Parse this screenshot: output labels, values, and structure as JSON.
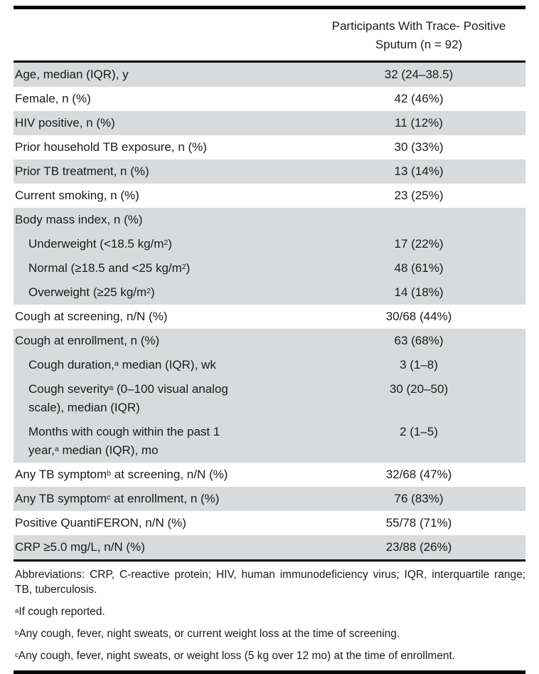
{
  "colors": {
    "row_shade": "#d8dadb",
    "rule": "#050505",
    "text": "#1b1b1b",
    "background": "#ffffff"
  },
  "table": {
    "header": {
      "title_line1": "Participants With Trace- Positive",
      "title_line2": "Sputum (n = 92)"
    },
    "rows": [
      {
        "label": [
          "Age, median (IQR), y"
        ],
        "value": "32 (24–38.5)",
        "shade": "gray",
        "indent": false
      },
      {
        "label": [
          "Female, n (%)"
        ],
        "value": "42 (46%)",
        "shade": "white",
        "indent": false
      },
      {
        "label": [
          "HIV positive, n (%)"
        ],
        "value": "11 (12%)",
        "shade": "gray",
        "indent": false
      },
      {
        "label": [
          "Prior household TB exposure, n (%)"
        ],
        "value": "30 (33%)",
        "shade": "white",
        "indent": false
      },
      {
        "label": [
          "Prior TB treatment, n (%)"
        ],
        "value": "13 (14%)",
        "shade": "gray",
        "indent": false
      },
      {
        "label": [
          "Current smoking, n (%)"
        ],
        "value": "23 (25%)",
        "shade": "white",
        "indent": false
      },
      {
        "label": [
          "Body mass index, n (%)"
        ],
        "value": "",
        "shade": "gray",
        "indent": false
      },
      {
        "label": [
          "Underweight (<18.5 kg/m",
          {
            "sup": "2"
          },
          ")"
        ],
        "value": "17 (22%)",
        "shade": "gray",
        "indent": true
      },
      {
        "label": [
          "Normal (≥18.5 and <25 kg/m",
          {
            "sup": "2"
          },
          ")"
        ],
        "value": "48 (61%)",
        "shade": "gray",
        "indent": true
      },
      {
        "label": [
          "Overweight (≥25 kg/m",
          {
            "sup": "2"
          },
          ")"
        ],
        "value": "14 (18%)",
        "shade": "gray",
        "indent": true
      },
      {
        "label": [
          "Cough at screening, n/N (%)"
        ],
        "value": "30/68 (44%)",
        "shade": "white",
        "indent": false
      },
      {
        "label": [
          "Cough at enrollment, n (%)"
        ],
        "value": "63 (68%)",
        "shade": "gray",
        "indent": false
      },
      {
        "label": [
          "Cough duration,",
          {
            "sup": "a"
          },
          " median (IQR), wk"
        ],
        "value": "3 (1–8)",
        "shade": "gray",
        "indent": true
      },
      {
        "label": [
          "Cough severity",
          {
            "sup": "a"
          },
          " (0–100 visual analog",
          {
            "br": true
          },
          "scale), median (IQR)"
        ],
        "value": "30 (20–50)",
        "shade": "gray",
        "indent": true
      },
      {
        "label": [
          "Months with cough within the past 1",
          {
            "br": true
          },
          "year,",
          {
            "sup": "a"
          },
          " median (IQR), mo"
        ],
        "value": "2 (1–5)",
        "shade": "gray",
        "indent": true
      },
      {
        "label": [
          "Any TB symptom",
          {
            "sup": "b"
          },
          " at screening, n/N (%)"
        ],
        "value": "32/68 (47%)",
        "shade": "white",
        "indent": false
      },
      {
        "label": [
          "Any TB symptom",
          {
            "sup": "c"
          },
          " at enrollment, n (%)"
        ],
        "value": "76 (83%)",
        "shade": "gray",
        "indent": false
      },
      {
        "label": [
          "Positive QuantiFERON, n/N (%)"
        ],
        "value": "55/78 (71%)",
        "shade": "white",
        "indent": false
      },
      {
        "label": [
          "CRP ≥5.0 mg/L, n/N (%)"
        ],
        "value": "23/88 (26%)",
        "shade": "gray",
        "indent": false
      }
    ],
    "footnotes": [
      {
        "parts": [
          "Abbreviations: CRP, C-reactive protein; HIV, human immunodeficiency virus; IQR, interquartile range; TB, tuberculosis."
        ],
        "justify": true
      },
      {
        "parts": [
          {
            "sup": "a"
          },
          "If cough reported."
        ],
        "justify": false
      },
      {
        "parts": [
          {
            "sup": "b"
          },
          "Any cough, fever, night sweats, or current weight loss at the time of screening."
        ],
        "justify": false
      },
      {
        "parts": [
          {
            "sup": "c"
          },
          "Any cough, fever, night sweats, or weight loss (5 kg over 12 mo) at the time of enrollment."
        ],
        "justify": false
      }
    ]
  }
}
